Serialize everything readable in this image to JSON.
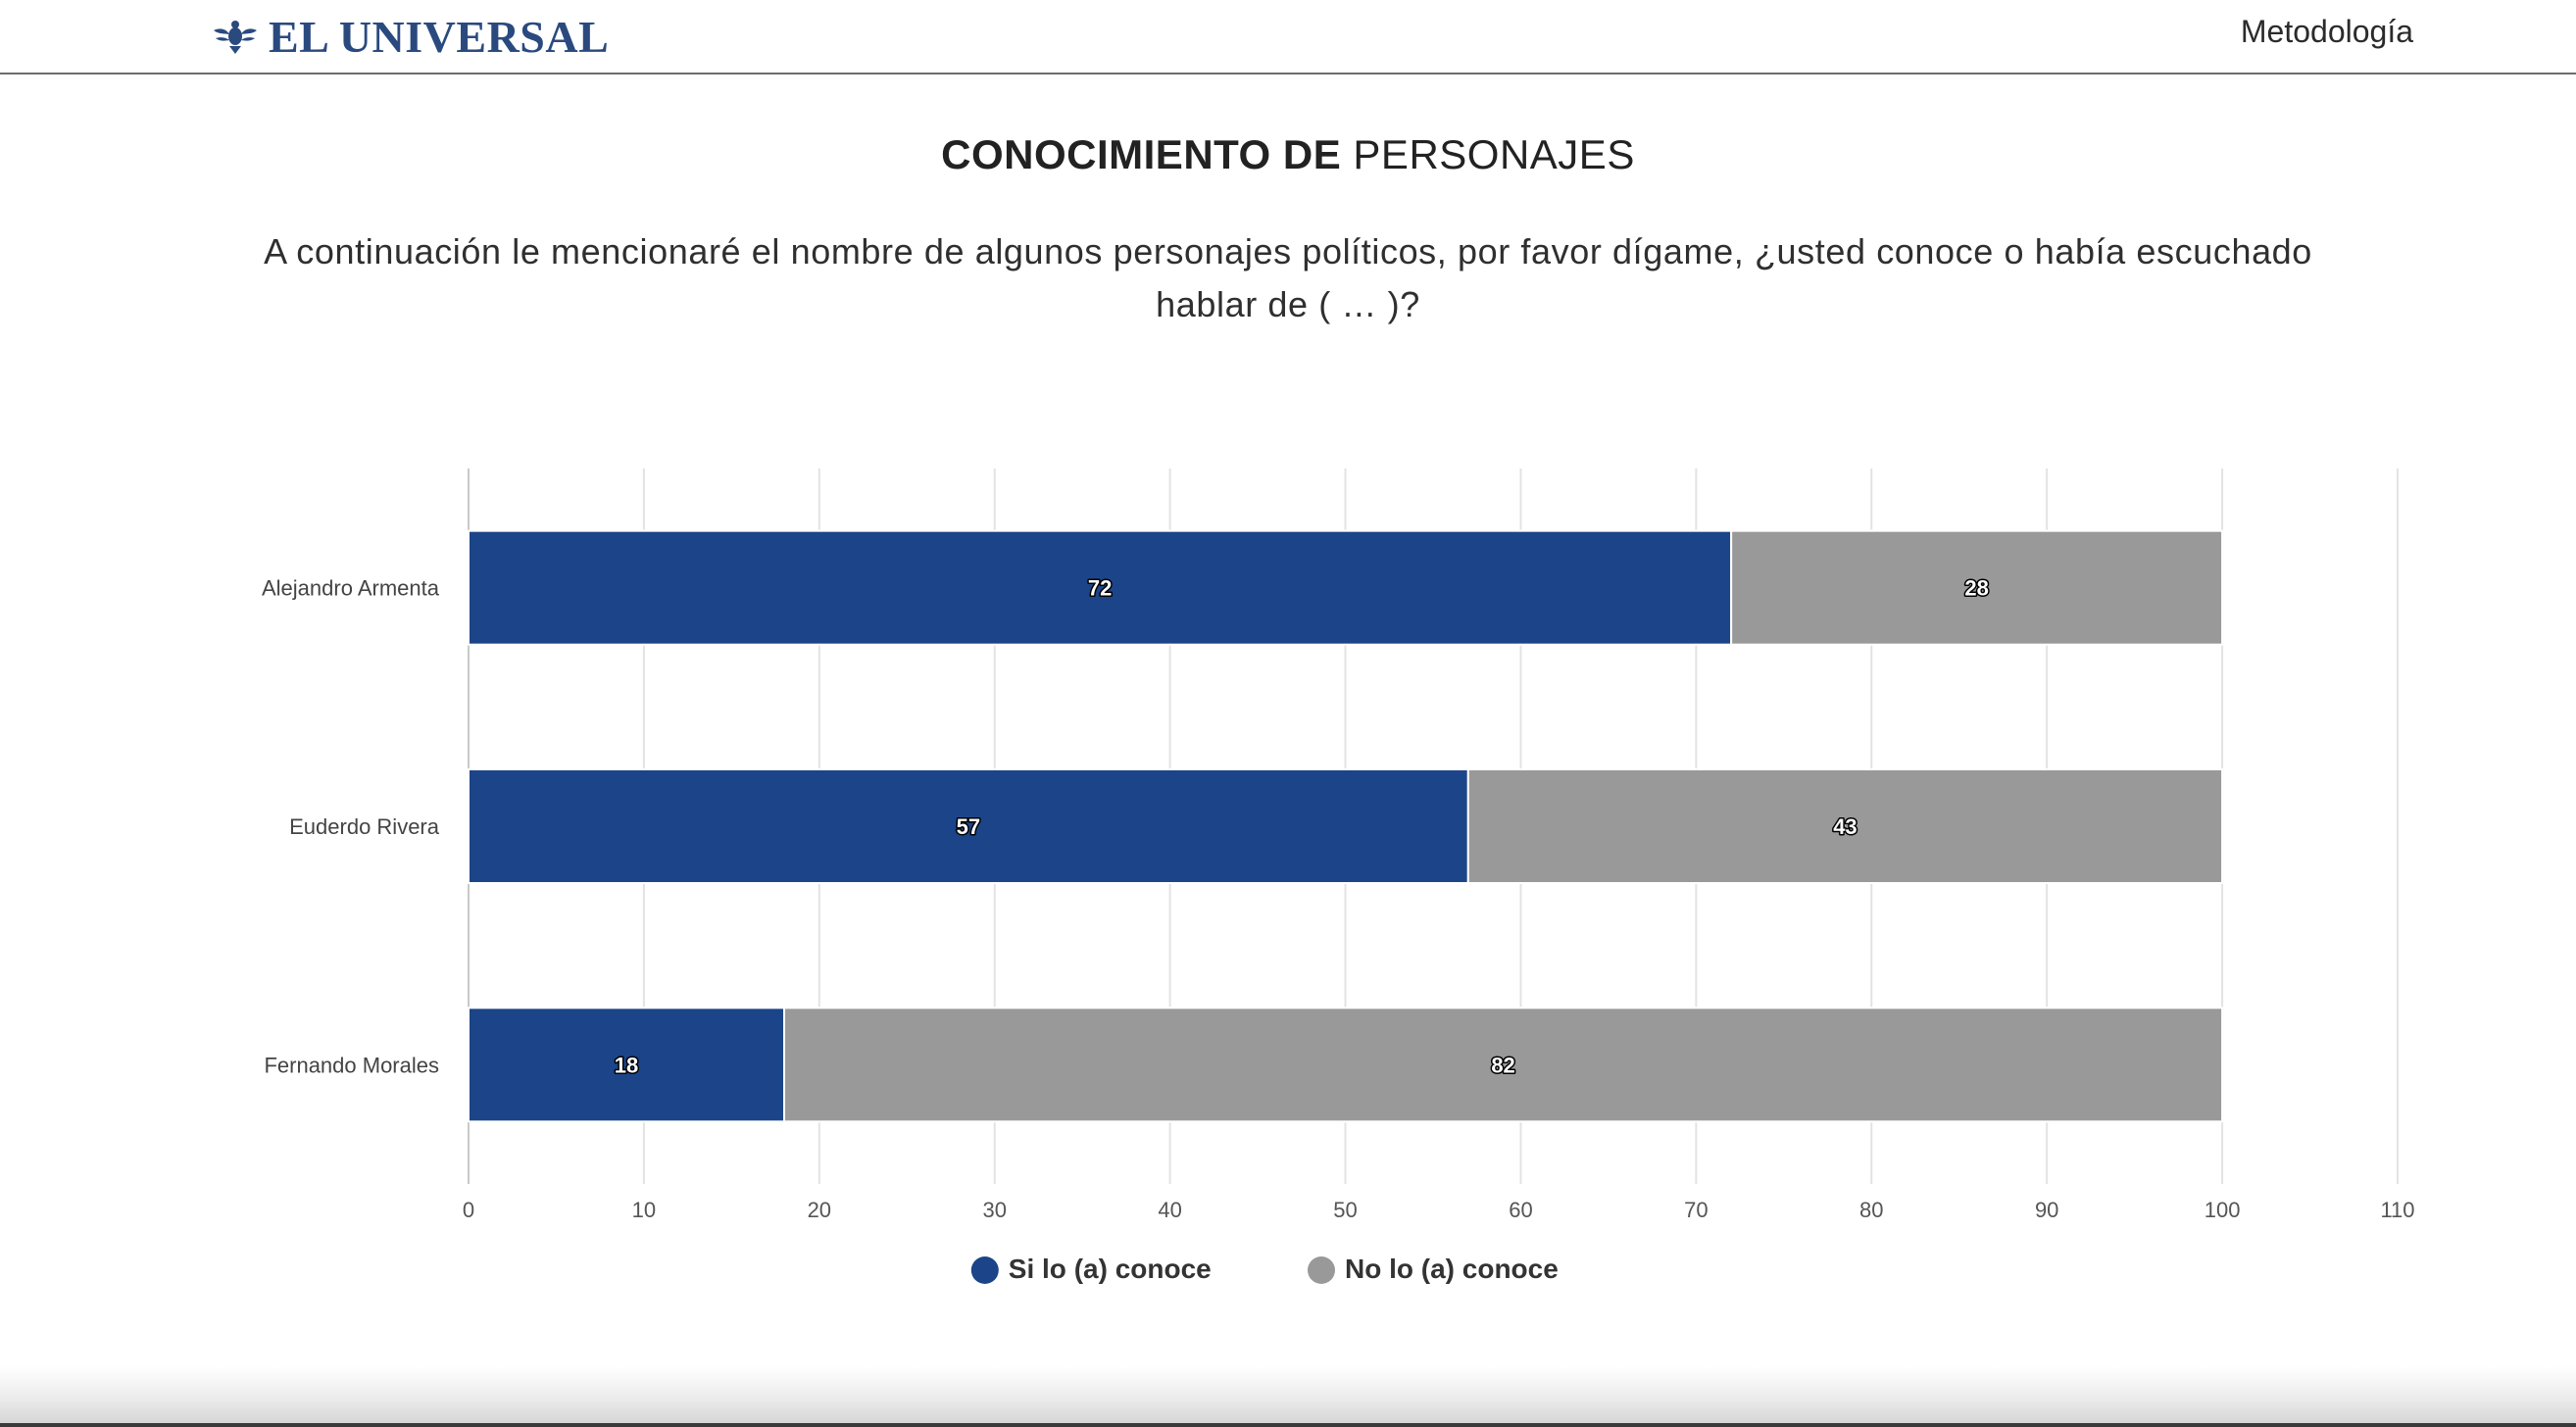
{
  "header": {
    "logo_text": "EL UNIVERSAL",
    "logo_icon": "eagle-emblem-icon",
    "nav_link": "Metodología"
  },
  "title": {
    "bold": "CONOCIMIENTO DE",
    "light": "PERSONAJES"
  },
  "subtitle": "A continuación le mencionaré el nombre de algunos personajes políticos, por favor dígame, ¿usted conoce o había escuchado hablar de ( … )?",
  "colors": {
    "brand": "#2a4a7f",
    "series_si": "#1b4588",
    "series_no": "#999999",
    "grid": "#e3e3e3"
  },
  "chart_data": {
    "type": "bar",
    "orientation": "horizontal",
    "stacked": true,
    "categories": [
      "Alejandro Armenta",
      "Euderdo Rivera",
      "Fernando Morales"
    ],
    "series": [
      {
        "name": "Si lo (a) conoce",
        "values": [
          72,
          57,
          18
        ],
        "color": "#1b4588"
      },
      {
        "name": "No lo (a) conoce",
        "values": [
          28,
          43,
          82
        ],
        "color": "#999999"
      }
    ],
    "xlim": [
      0,
      110
    ],
    "xticks": [
      0,
      10,
      20,
      30,
      40,
      50,
      60,
      70,
      80,
      90,
      100,
      110
    ],
    "grid": true,
    "data_labels": true,
    "legend": "bottom-center"
  }
}
